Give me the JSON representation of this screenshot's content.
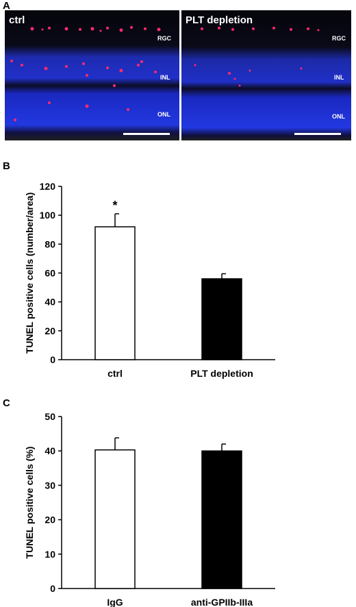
{
  "panels": {
    "a": {
      "letter": "A"
    },
    "b": {
      "letter": "B"
    },
    "c": {
      "letter": "C"
    }
  },
  "micrographs": [
    {
      "title": "ctrl",
      "layers": [
        "RGC",
        "INL",
        "ONL"
      ]
    },
    {
      "title": "PLT depletion",
      "layers": [
        "RGC",
        "INL",
        "ONL"
      ]
    }
  ],
  "colors": {
    "nuclei_stain": "#1a2fe0",
    "tunel_stain": "#ff2a6a",
    "bar_ctrl": "#ffffff",
    "bar_treated": "#000000"
  },
  "chart_data": [
    {
      "type": "bar",
      "categories": [
        "ctrl",
        "PLT depletion"
      ],
      "values": [
        92,
        56
      ],
      "errors": [
        9,
        3.5
      ],
      "bar_colors": [
        "#ffffff",
        "#000000"
      ],
      "ylabel": "TUNEL positive cells (number/area)",
      "ylim": [
        0,
        120
      ],
      "yticks": [
        0,
        20,
        40,
        60,
        80,
        100,
        120
      ],
      "annotations": [
        "*",
        ""
      ],
      "grid": false
    },
    {
      "type": "bar",
      "categories": [
        "IgG",
        "anti-GPIIb-IIIa"
      ],
      "values": [
        40.3,
        40
      ],
      "errors": [
        3.5,
        2
      ],
      "bar_colors": [
        "#ffffff",
        "#000000"
      ],
      "ylabel": "TUNEL positive cells (%)",
      "ylim": [
        0,
        50
      ],
      "yticks": [
        0,
        10,
        20,
        30,
        40,
        50
      ],
      "annotations": [
        "",
        ""
      ],
      "grid": false
    }
  ]
}
